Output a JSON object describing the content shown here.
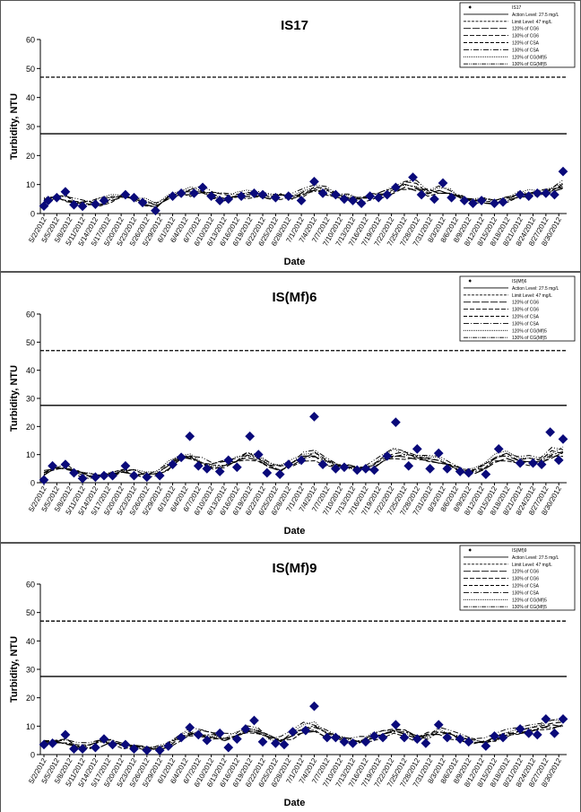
{
  "chart_data": [
    {
      "type": "scatter",
      "title": "IS17",
      "xlabel": "Date",
      "ylabel": "Turbidity, NTU",
      "ylim": [
        0,
        60
      ],
      "yticks": [
        "0",
        "10",
        "20",
        "30",
        "40",
        "50",
        "60"
      ],
      "xticks": [
        "5/2/2012",
        "5/5/2012",
        "5/8/2012",
        "5/11/2012",
        "5/14/2012",
        "5/17/2012",
        "5/20/2012",
        "5/23/2012",
        "5/26/2012",
        "5/29/2012",
        "6/1/2012",
        "6/4/2012",
        "6/7/2012",
        "6/10/2012",
        "6/13/2012",
        "6/16/2012",
        "6/19/2012",
        "6/22/2012",
        "6/25/2012",
        "6/28/2012",
        "7/1/2012",
        "7/4/2012",
        "7/7/2012",
        "7/10/2012",
        "7/13/2012",
        "7/16/2012",
        "7/19/2012",
        "7/22/2012",
        "7/25/2012",
        "7/28/2012",
        "7/31/2012",
        "8/3/2012",
        "8/6/2012",
        "8/9/2012",
        "8/12/2012",
        "8/15/2012",
        "8/18/2012",
        "8/21/2012",
        "8/24/2012",
        "8/27/2012",
        "8/30/2012"
      ],
      "legend_position": "top-right",
      "legend": [
        "IS17",
        "Action Level: 27.5 mg/L",
        "Limit Level: 47 mg/L",
        "120% of CG6",
        "130% of CG6",
        "120% of CSA",
        "130% of CSA",
        "120% of CG(Mf)5",
        "130% of CG(Mf)5"
      ],
      "action_level": 27.5,
      "limit_level": 47,
      "points": [
        {
          "x": "5/2/2012",
          "y": 2.6
        },
        {
          "x": "5/3/2012",
          "y": 4.5
        },
        {
          "x": "5/5/2012",
          "y": 5.5
        },
        {
          "x": "5/7/2012",
          "y": 7.5
        },
        {
          "x": "5/9/2012",
          "y": 3.0
        },
        {
          "x": "5/11/2012",
          "y": 2.5
        },
        {
          "x": "5/14/2012",
          "y": 3.2
        },
        {
          "x": "5/16/2012",
          "y": 4.5
        },
        {
          "x": "5/21/2012",
          "y": 6.5
        },
        {
          "x": "5/23/2012",
          "y": 5.5
        },
        {
          "x": "5/25/2012",
          "y": 3.8
        },
        {
          "x": "5/28/2012",
          "y": 1.0
        },
        {
          "x": "6/1/2012",
          "y": 6.0
        },
        {
          "x": "6/3/2012",
          "y": 7.0
        },
        {
          "x": "6/6/2012",
          "y": 7.0
        },
        {
          "x": "6/8/2012",
          "y": 9.0
        },
        {
          "x": "6/10/2012",
          "y": 6.0
        },
        {
          "x": "6/12/2012",
          "y": 4.5
        },
        {
          "x": "6/14/2012",
          "y": 5.0
        },
        {
          "x": "6/17/2012",
          "y": 6.0
        },
        {
          "x": "6/20/2012",
          "y": 7.0
        },
        {
          "x": "6/22/2012",
          "y": 6.5
        },
        {
          "x": "6/25/2012",
          "y": 5.5
        },
        {
          "x": "6/28/2012",
          "y": 6.0
        },
        {
          "x": "7/1/2012",
          "y": 4.5
        },
        {
          "x": "7/4/2012",
          "y": 11.0
        },
        {
          "x": "7/6/2012",
          "y": 7.0
        },
        {
          "x": "7/9/2012",
          "y": 6.5
        },
        {
          "x": "7/11/2012",
          "y": 5.0
        },
        {
          "x": "7/13/2012",
          "y": 4.5
        },
        {
          "x": "7/15/2012",
          "y": 3.5
        },
        {
          "x": "7/17/2012",
          "y": 6.0
        },
        {
          "x": "7/19/2012",
          "y": 5.5
        },
        {
          "x": "7/21/2012",
          "y": 6.5
        },
        {
          "x": "7/23/2012",
          "y": 9.0
        },
        {
          "x": "7/27/2012",
          "y": 12.5
        },
        {
          "x": "7/29/2012",
          "y": 6.5
        },
        {
          "x": "8/1/2012",
          "y": 5.0
        },
        {
          "x": "8/3/2012",
          "y": 10.5
        },
        {
          "x": "8/5/2012",
          "y": 5.5
        },
        {
          "x": "8/8/2012",
          "y": 4.5
        },
        {
          "x": "8/10/2012",
          "y": 3.5
        },
        {
          "x": "8/12/2012",
          "y": 4.5
        },
        {
          "x": "8/15/2012",
          "y": 3.5
        },
        {
          "x": "8/17/2012",
          "y": 4.0
        },
        {
          "x": "8/21/2012",
          "y": 6.5
        },
        {
          "x": "8/23/2012",
          "y": 6.0
        },
        {
          "x": "8/25/2012",
          "y": 7.0
        },
        {
          "x": "8/27/2012",
          "y": 7.0
        },
        {
          "x": "8/29/2012",
          "y": 6.5
        },
        {
          "x": "8/31/2012",
          "y": 14.5
        }
      ]
    },
    {
      "type": "scatter",
      "title": "IS(Mf)6",
      "xlabel": "Date",
      "ylabel": "Turbidity, NTU",
      "ylim": [
        0,
        60
      ],
      "yticks": [
        "0",
        "10",
        "20",
        "30",
        "40",
        "50",
        "60"
      ],
      "xticks": [
        "5/2/2012",
        "5/5/2012",
        "5/8/2012",
        "5/11/2012",
        "5/14/2012",
        "5/17/2012",
        "5/20/2012",
        "5/23/2012",
        "5/26/2012",
        "5/29/2012",
        "6/1/2012",
        "6/4/2012",
        "6/7/2012",
        "6/10/2012",
        "6/13/2012",
        "6/16/2012",
        "6/19/2012",
        "6/22/2012",
        "6/25/2012",
        "6/28/2012",
        "7/1/2012",
        "7/4/2012",
        "7/7/2012",
        "7/10/2012",
        "7/13/2012",
        "7/16/2012",
        "7/19/2012",
        "7/22/2012",
        "7/25/2012",
        "7/28/2012",
        "7/31/2012",
        "8/3/2012",
        "8/6/2012",
        "8/9/2012",
        "8/12/2012",
        "8/15/2012",
        "8/18/2012",
        "8/21/2012",
        "8/24/2012",
        "8/27/2012",
        "8/30/2012"
      ],
      "legend_position": "top-right",
      "legend": [
        "IS(Mf)6",
        "Action Level: 27.5 mg/L",
        "Limit Level: 47 mg/L",
        "120% of CG6",
        "130% of CG6",
        "120% of CSA",
        "130% of CSA",
        "120% of CG(Mf)5",
        "130% of CG(Mf)5"
      ],
      "action_level": 27.5,
      "limit_level": 47,
      "points": [
        {
          "x": "5/2/2012",
          "y": 1.0
        },
        {
          "x": "5/4/2012",
          "y": 6.0
        },
        {
          "x": "5/7/2012",
          "y": 6.5
        },
        {
          "x": "5/9/2012",
          "y": 3.5
        },
        {
          "x": "5/11/2012",
          "y": 1.5
        },
        {
          "x": "5/14/2012",
          "y": 2.0
        },
        {
          "x": "5/16/2012",
          "y": 2.5
        },
        {
          "x": "5/18/2012",
          "y": 2.5
        },
        {
          "x": "5/21/2012",
          "y": 6.0
        },
        {
          "x": "5/23/2012",
          "y": 2.5
        },
        {
          "x": "5/26/2012",
          "y": 2.0
        },
        {
          "x": "5/29/2012",
          "y": 2.5
        },
        {
          "x": "6/1/2012",
          "y": 6.5
        },
        {
          "x": "6/3/2012",
          "y": 9.0
        },
        {
          "x": "6/5/2012",
          "y": 16.5
        },
        {
          "x": "6/7/2012",
          "y": 6.0
        },
        {
          "x": "6/9/2012",
          "y": 5.0
        },
        {
          "x": "6/12/2012",
          "y": 4.0
        },
        {
          "x": "6/14/2012",
          "y": 8.0
        },
        {
          "x": "6/16/2012",
          "y": 5.5
        },
        {
          "x": "6/19/2012",
          "y": 16.5
        },
        {
          "x": "6/21/2012",
          "y": 10.0
        },
        {
          "x": "6/23/2012",
          "y": 3.5
        },
        {
          "x": "6/26/2012",
          "y": 3.0
        },
        {
          "x": "6/28/2012",
          "y": 6.5
        },
        {
          "x": "7/1/2012",
          "y": 8.0
        },
        {
          "x": "7/4/2012",
          "y": 23.5
        },
        {
          "x": "7/6/2012",
          "y": 6.5
        },
        {
          "x": "7/9/2012",
          "y": 5.0
        },
        {
          "x": "7/11/2012",
          "y": 5.5
        },
        {
          "x": "7/14/2012",
          "y": 4.5
        },
        {
          "x": "7/16/2012",
          "y": 5.0
        },
        {
          "x": "7/18/2012",
          "y": 4.5
        },
        {
          "x": "7/21/2012",
          "y": 9.5
        },
        {
          "x": "7/23/2012",
          "y": 21.5
        },
        {
          "x": "7/26/2012",
          "y": 6.0
        },
        {
          "x": "7/28/2012",
          "y": 12.0
        },
        {
          "x": "7/31/2012",
          "y": 5.0
        },
        {
          "x": "8/2/2012",
          "y": 10.5
        },
        {
          "x": "8/4/2012",
          "y": 5.0
        },
        {
          "x": "8/7/2012",
          "y": 4.0
        },
        {
          "x": "8/9/2012",
          "y": 3.5
        },
        {
          "x": "8/13/2012",
          "y": 3.0
        },
        {
          "x": "8/16/2012",
          "y": 12.0
        },
        {
          "x": "8/21/2012",
          "y": 7.0
        },
        {
          "x": "8/24/2012",
          "y": 7.0
        },
        {
          "x": "8/26/2012",
          "y": 6.5
        },
        {
          "x": "8/28/2012",
          "y": 18.0
        },
        {
          "x": "8/30/2012",
          "y": 8.0
        },
        {
          "x": "8/31/2012",
          "y": 15.5
        }
      ]
    },
    {
      "type": "scatter",
      "title": "IS(Mf)9",
      "xlabel": "Date",
      "ylabel": "Turbidity, NTU",
      "ylim": [
        0,
        60
      ],
      "yticks": [
        "0",
        "10",
        "20",
        "30",
        "40",
        "50",
        "60"
      ],
      "xticks": [
        "5/2/2012",
        "5/5/2012",
        "5/8/2012",
        "5/11/2012",
        "5/14/2012",
        "5/17/2012",
        "5/20/2012",
        "5/23/2012",
        "5/26/2012",
        "5/29/2012",
        "6/1/2012",
        "6/4/2012",
        "6/7/2012",
        "6/10/2012",
        "6/13/2012",
        "6/16/2012",
        "6/19/2012",
        "6/22/2012",
        "6/25/2012",
        "6/28/2012",
        "7/1/2012",
        "7/4/2012",
        "7/7/2012",
        "7/10/2012",
        "7/13/2012",
        "7/16/2012",
        "7/19/2012",
        "7/22/2012",
        "7/25/2012",
        "7/28/2012",
        "7/31/2012",
        "8/3/2012",
        "8/6/2012",
        "8/9/2012",
        "8/12/2012",
        "8/15/2012",
        "8/18/2012",
        "8/21/2012",
        "8/24/2012",
        "8/27/2012",
        "8/30/2012"
      ],
      "legend_position": "top-right",
      "legend": [
        "IS(Mf)9",
        "Action Level: 27.5 mg/L",
        "Limit Level: 47 mg/L",
        "120% of CG6",
        "130% of CG6",
        "120% of CSA",
        "130% of CSA",
        "120% of CG(Mf)5",
        "130% of CG(Mf)5"
      ],
      "action_level": 27.5,
      "limit_level": 47,
      "points": [
        {
          "x": "5/2/2012",
          "y": 3.5
        },
        {
          "x": "5/4/2012",
          "y": 4.0
        },
        {
          "x": "5/7/2012",
          "y": 7.0
        },
        {
          "x": "5/9/2012",
          "y": 2.0
        },
        {
          "x": "5/11/2012",
          "y": 2.0
        },
        {
          "x": "5/14/2012",
          "y": 2.5
        },
        {
          "x": "5/16/2012",
          "y": 5.5
        },
        {
          "x": "5/18/2012",
          "y": 3.5
        },
        {
          "x": "5/21/2012",
          "y": 3.5
        },
        {
          "x": "5/23/2012",
          "y": 2.0
        },
        {
          "x": "5/26/2012",
          "y": 1.5
        },
        {
          "x": "5/29/2012",
          "y": 1.5
        },
        {
          "x": "5/31/2012",
          "y": 3.0
        },
        {
          "x": "6/3/2012",
          "y": 6.0
        },
        {
          "x": "6/5/2012",
          "y": 9.5
        },
        {
          "x": "6/7/2012",
          "y": 7.0
        },
        {
          "x": "6/9/2012",
          "y": 5.0
        },
        {
          "x": "6/12/2012",
          "y": 7.5
        },
        {
          "x": "6/14/2012",
          "y": 2.5
        },
        {
          "x": "6/16/2012",
          "y": 5.5
        },
        {
          "x": "6/18/2012",
          "y": 9.0
        },
        {
          "x": "6/20/2012",
          "y": 12.0
        },
        {
          "x": "6/22/2012",
          "y": 4.5
        },
        {
          "x": "6/25/2012",
          "y": 4.0
        },
        {
          "x": "6/27/2012",
          "y": 3.5
        },
        {
          "x": "6/29/2012",
          "y": 8.0
        },
        {
          "x": "7/2/2012",
          "y": 8.5
        },
        {
          "x": "7/4/2012",
          "y": 17.0
        },
        {
          "x": "7/7/2012",
          "y": 6.0
        },
        {
          "x": "7/9/2012",
          "y": 6.0
        },
        {
          "x": "7/11/2012",
          "y": 4.5
        },
        {
          "x": "7/13/2012",
          "y": 4.0
        },
        {
          "x": "7/16/2012",
          "y": 4.5
        },
        {
          "x": "7/18/2012",
          "y": 6.5
        },
        {
          "x": "7/20/2012",
          "y": 6.0
        },
        {
          "x": "7/23/2012",
          "y": 10.5
        },
        {
          "x": "7/25/2012",
          "y": 6.0
        },
        {
          "x": "7/28/2012",
          "y": 5.5
        },
        {
          "x": "7/30/2012",
          "y": 4.0
        },
        {
          "x": "8/2/2012",
          "y": 10.5
        },
        {
          "x": "8/4/2012",
          "y": 6.0
        },
        {
          "x": "8/7/2012",
          "y": 5.5
        },
        {
          "x": "8/9/2012",
          "y": 4.5
        },
        {
          "x": "8/13/2012",
          "y": 3.0
        },
        {
          "x": "8/15/2012",
          "y": 6.5
        },
        {
          "x": "8/17/2012",
          "y": 6.0
        },
        {
          "x": "8/21/2012",
          "y": 9.0
        },
        {
          "x": "8/23/2012",
          "y": 7.5
        },
        {
          "x": "8/25/2012",
          "y": 7.0
        },
        {
          "x": "8/27/2012",
          "y": 12.5
        },
        {
          "x": "8/29/2012",
          "y": 7.5
        },
        {
          "x": "8/31/2012",
          "y": 12.5
        }
      ]
    }
  ]
}
